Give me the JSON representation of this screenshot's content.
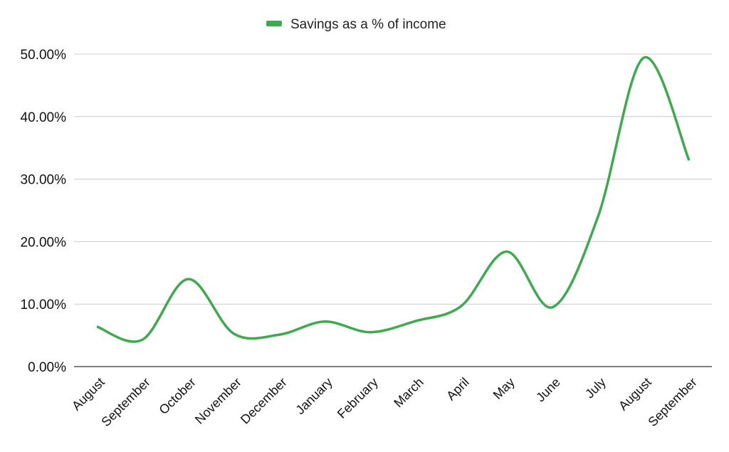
{
  "chart_data": {
    "type": "line",
    "title": "",
    "xlabel": "",
    "ylabel": "",
    "categories": [
      "August",
      "September",
      "October",
      "November",
      "December",
      "January",
      "February",
      "March",
      "April",
      "May",
      "June",
      "July",
      "August",
      "September"
    ],
    "series": [
      {
        "name": "Savings as a % of income",
        "color": "#3daa4e",
        "values": [
          6.4,
          4.3,
          14.0,
          5.3,
          5.1,
          7.2,
          5.5,
          7.3,
          9.7,
          18.4,
          9.5,
          24.0,
          49.4,
          33.0
        ]
      }
    ],
    "ylim": [
      0,
      50
    ],
    "yticks": [
      "0.00%",
      "10.00%",
      "20.00%",
      "30.00%",
      "40.00%",
      "50.00%"
    ],
    "grid": true,
    "legend": "top-center",
    "smooth": true
  },
  "colors": {
    "series": "#3daa4e",
    "grid": "#cccccc",
    "axis": "#333333"
  }
}
